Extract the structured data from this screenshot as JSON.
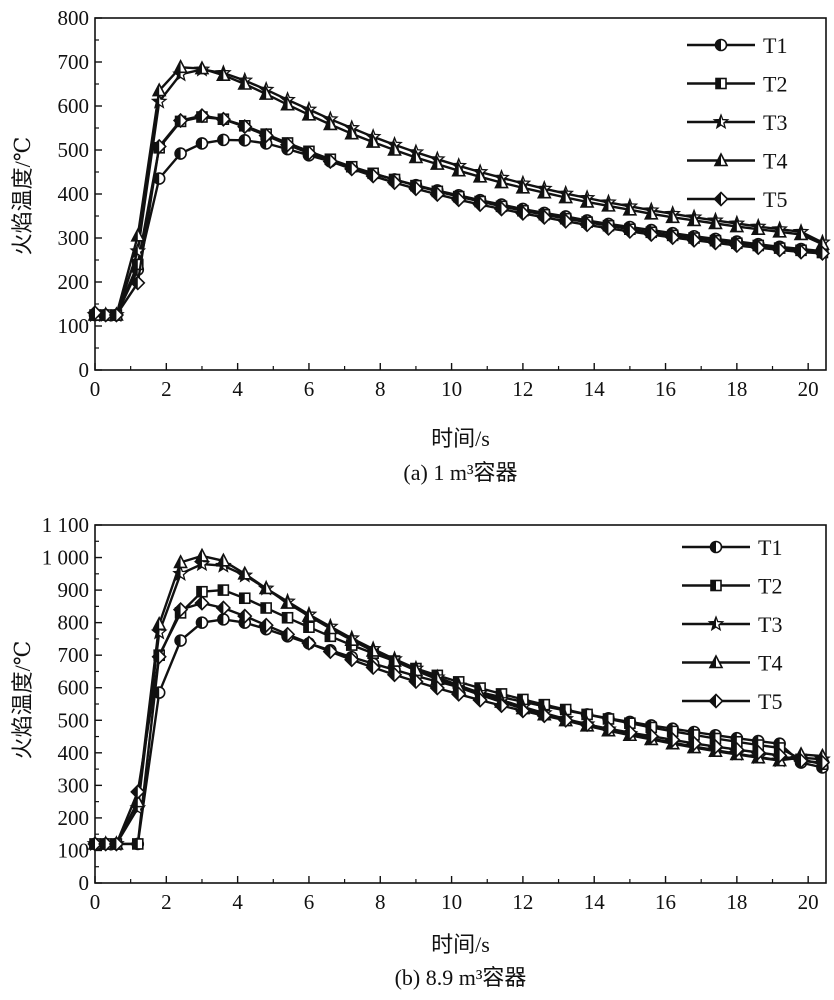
{
  "chart_data": [
    {
      "type": "line",
      "caption": "(a) 1 m³容器",
      "xlabel": "时间/s",
      "ylabel": "火焰温度/℃",
      "xlim": [
        0,
        20.5
      ],
      "ylim": [
        0,
        800
      ],
      "xticks": [
        0,
        2,
        4,
        6,
        8,
        10,
        12,
        14,
        16,
        18,
        20
      ],
      "yticks": [
        0,
        100,
        200,
        300,
        400,
        500,
        600,
        700,
        800
      ],
      "ytick_labels": [
        "0",
        "100",
        "200",
        "300",
        "400",
        "500",
        "600",
        "700",
        "800"
      ],
      "grid": false,
      "legend_position": "top-right",
      "x": [
        0,
        0.3,
        0.6,
        1.2,
        1.8,
        2.4,
        3,
        3.6,
        4.2,
        4.8,
        5.4,
        6,
        6.6,
        7.2,
        7.8,
        8.4,
        9,
        9.6,
        10.2,
        10.8,
        11.4,
        12,
        12.6,
        13.2,
        13.8,
        14.4,
        15,
        15.6,
        16.2,
        16.8,
        17.4,
        18,
        18.6,
        19.2,
        19.8,
        20.4
      ],
      "series": [
        {
          "name": "T1",
          "marker": "circle-half",
          "values": [
            125,
            125,
            125,
            228,
            435,
            492,
            515,
            523,
            522,
            515,
            502,
            488,
            474,
            460,
            446,
            433,
            420,
            408,
            397,
            386,
            376,
            366,
            357,
            349,
            340,
            332,
            325,
            318,
            311,
            304,
            298,
            292,
            286,
            280,
            275,
            270
          ]
        },
        {
          "name": "T2",
          "marker": "square-half",
          "values": [
            125,
            125,
            125,
            240,
            505,
            565,
            575,
            570,
            555,
            536,
            516,
            497,
            479,
            462,
            447,
            433,
            419,
            406,
            394,
            383,
            372,
            362,
            353,
            344,
            336,
            328,
            320,
            313,
            306,
            300,
            294,
            288,
            283,
            277,
            272,
            267
          ]
        },
        {
          "name": "T3",
          "marker": "star",
          "values": [
            125,
            125,
            125,
            270,
            610,
            672,
            683,
            675,
            658,
            637,
            614,
            592,
            570,
            550,
            530,
            512,
            495,
            479,
            464,
            450,
            437,
            424,
            412,
            401,
            391,
            381,
            372,
            363,
            355,
            347,
            340,
            333,
            326,
            320,
            314,
            290
          ]
        },
        {
          "name": "T4",
          "marker": "triangle-half",
          "values": [
            125,
            125,
            125,
            305,
            635,
            688,
            685,
            670,
            650,
            627,
            603,
            580,
            558,
            537,
            518,
            500,
            483,
            468,
            453,
            439,
            426,
            414,
            403,
            392,
            382,
            373,
            364,
            355,
            347,
            340,
            333,
            326,
            320,
            314,
            308,
            286
          ]
        },
        {
          "name": "T5",
          "marker": "diamond-half",
          "values": [
            130,
            125,
            125,
            198,
            508,
            567,
            578,
            570,
            553,
            533,
            512,
            493,
            474,
            457,
            441,
            426,
            412,
            399,
            387,
            376,
            366,
            356,
            347,
            338,
            330,
            322,
            315,
            308,
            301,
            295,
            289,
            283,
            278,
            273,
            268,
            265
          ]
        }
      ]
    },
    {
      "type": "line",
      "caption": "(b) 8.9 m³容器",
      "xlabel": "时间/s",
      "ylabel": "火焰温度/℃",
      "xlim": [
        0,
        20.5
      ],
      "ylim": [
        0,
        1100
      ],
      "xticks": [
        0,
        2,
        4,
        6,
        8,
        10,
        12,
        14,
        16,
        18,
        20
      ],
      "yticks": [
        0,
        100,
        200,
        300,
        400,
        500,
        600,
        700,
        800,
        900,
        1000,
        1100
      ],
      "ytick_labels": [
        "0",
        "100",
        "200",
        "300",
        "400",
        "500",
        "600",
        "700",
        "800",
        "900",
        "1 000",
        "1 100"
      ],
      "grid": false,
      "legend_position": "top-right",
      "x": [
        0,
        0.3,
        0.6,
        1.2,
        1.8,
        2.4,
        3,
        3.6,
        4.2,
        4.8,
        5.4,
        6,
        6.6,
        7.2,
        7.8,
        8.4,
        9,
        9.6,
        10.2,
        10.8,
        11.4,
        12,
        12.6,
        13.2,
        13.8,
        14.4,
        15,
        15.6,
        16.2,
        16.8,
        17.4,
        18,
        18.6,
        19.2,
        19.8,
        20.4
      ],
      "series": [
        {
          "name": "T1",
          "marker": "circle-half",
          "values": [
            120,
            120,
            120,
            120,
            585,
            745,
            800,
            810,
            800,
            780,
            758,
            736,
            715,
            694,
            674,
            655,
            636,
            619,
            602,
            586,
            571,
            557,
            543,
            530,
            518,
            506,
            495,
            484,
            474,
            464,
            454,
            445,
            436,
            428,
            370,
            355
          ]
        },
        {
          "name": "T2",
          "marker": "square-half",
          "values": [
            120,
            120,
            120,
            120,
            700,
            830,
            895,
            900,
            875,
            845,
            815,
            786,
            758,
            731,
            706,
            682,
            659,
            638,
            618,
            599,
            581,
            564,
            548,
            533,
            518,
            504,
            491,
            478,
            466,
            455,
            444,
            434,
            424,
            415,
            380,
            365
          ]
        },
        {
          "name": "T3",
          "marker": "star",
          "values": [
            120,
            120,
            120,
            230,
            770,
            950,
            980,
            975,
            945,
            905,
            865,
            825,
            788,
            752,
            719,
            688,
            659,
            632,
            607,
            584,
            562,
            541,
            522,
            504,
            488,
            472,
            458,
            444,
            431,
            419,
            408,
            397,
            387,
            377,
            385,
            380
          ]
        },
        {
          "name": "T4",
          "marker": "triangle-half",
          "values": [
            120,
            120,
            120,
            250,
            795,
            985,
            1005,
            990,
            950,
            905,
            860,
            820,
            782,
            746,
            713,
            682,
            653,
            626,
            601,
            578,
            556,
            536,
            517,
            499,
            483,
            468,
            454,
            441,
            428,
            416,
            405,
            395,
            385,
            376,
            395,
            390
          ]
        },
        {
          "name": "T5",
          "marker": "diamond-half",
          "values": [
            120,
            120,
            120,
            280,
            695,
            840,
            860,
            845,
            820,
            792,
            764,
            737,
            711,
            686,
            662,
            640,
            619,
            599,
            580,
            562,
            545,
            529,
            514,
            500,
            487,
            474,
            462,
            451,
            440,
            429,
            419,
            410,
            401,
            392,
            375,
            370
          ]
        }
      ]
    }
  ]
}
